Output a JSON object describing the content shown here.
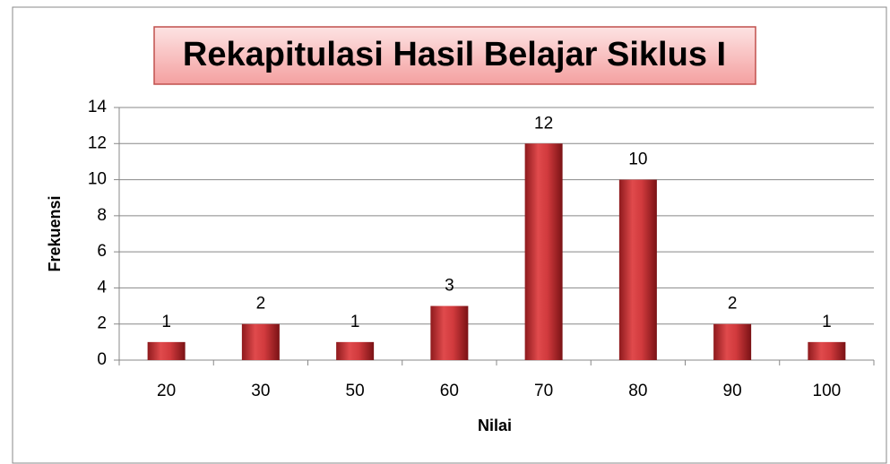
{
  "chart_data": {
    "type": "bar",
    "title": "Rekapitulasi Hasil Belajar Siklus I",
    "x_label": "Nilai",
    "y_label": "Frekuensi",
    "categories": [
      "20",
      "30",
      "50",
      "60",
      "70",
      "80",
      "90",
      "100"
    ],
    "values": [
      1,
      2,
      1,
      3,
      12,
      10,
      2,
      1
    ],
    "color": "#c0262b",
    "ylim": [
      0,
      14
    ],
    "yticks": [
      0,
      2,
      4,
      6,
      8,
      10,
      12,
      14
    ],
    "grid": true
  }
}
